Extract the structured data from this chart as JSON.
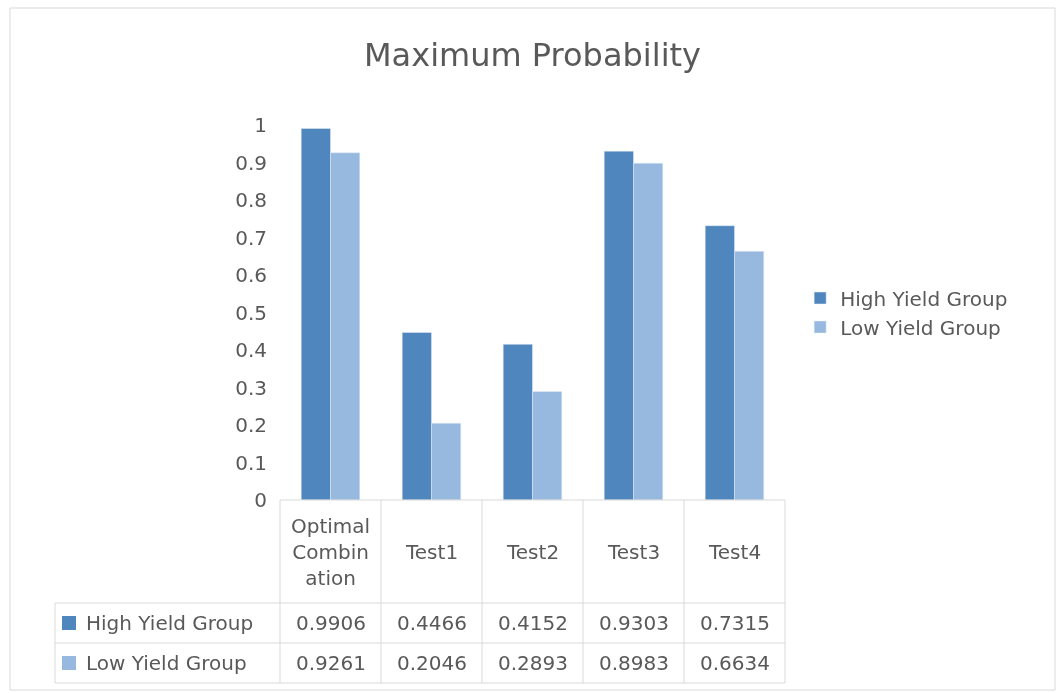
{
  "chart_data": {
    "type": "bar",
    "title": "Maximum Probability",
    "categories": [
      "Optimal Combination",
      "Test1",
      "Test2",
      "Test3",
      "Test4"
    ],
    "series": [
      {
        "name": "High Yield Group",
        "color": "#4f86bd",
        "values": [
          0.9906,
          0.4466,
          0.4152,
          0.9303,
          0.7315
        ]
      },
      {
        "name": "Low Yield Group",
        "color": "#97b9e0",
        "values": [
          0.9261,
          0.2046,
          0.2893,
          0.8983,
          0.6634
        ]
      }
    ],
    "ylim": [
      0,
      1
    ],
    "yticks": [
      0,
      0.1,
      0.2,
      0.3,
      0.4,
      0.5,
      0.6,
      0.7,
      0.8,
      0.9,
      1
    ],
    "grid": false,
    "legend": "right",
    "data_labels": true
  }
}
